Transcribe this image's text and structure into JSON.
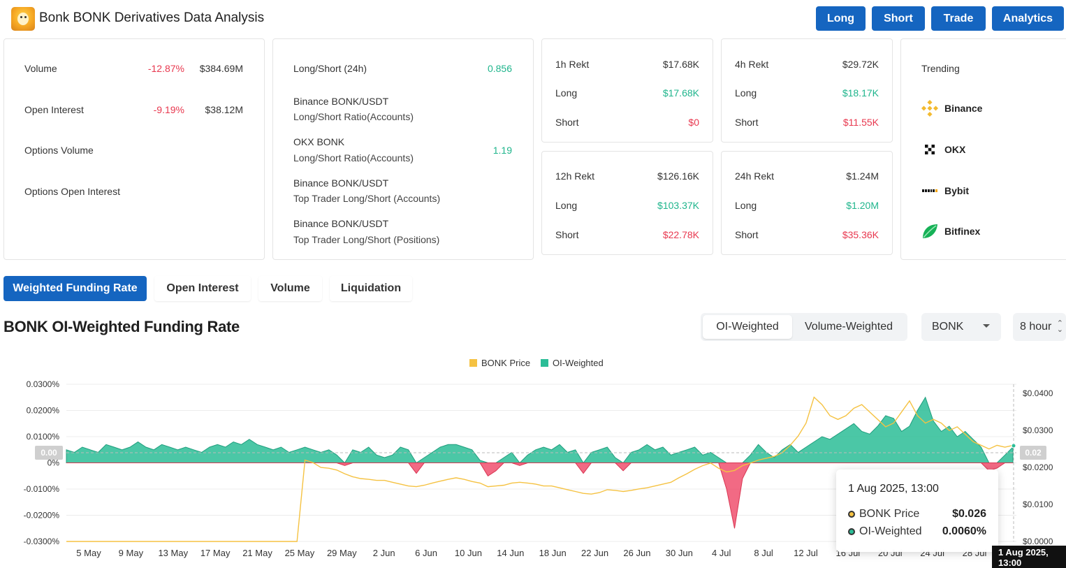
{
  "header": {
    "title": "Bonk BONK Derivatives Data Analysis",
    "nav": [
      "Long",
      "Short",
      "Trade",
      "Analytics"
    ]
  },
  "market": {
    "volume_label": "Volume",
    "volume_change": "-12.87%",
    "volume_value": "$384.69M",
    "oi_label": "Open Interest",
    "oi_change": "-9.19%",
    "oi_value": "$38.12M",
    "options_volume_label": "Options Volume",
    "options_oi_label": "Options Open Interest"
  },
  "ratios": {
    "ls24_label": "Long/Short (24h)",
    "ls24_value": "0.856",
    "binance_title": "Binance BONK/USDT",
    "binance_sub": "Long/Short Ratio(Accounts)",
    "okx_title": "OKX BONK",
    "okx_sub": "Long/Short Ratio(Accounts)",
    "okx_value": "1.19",
    "top_acc_title": "Binance BONK/USDT",
    "top_acc_sub": "Top Trader Long/Short (Accounts)",
    "top_pos_title": "Binance BONK/USDT",
    "top_pos_sub": "Top Trader Long/Short (Positions)"
  },
  "rekt": [
    {
      "label": "1h Rekt",
      "total": "$17.68K",
      "long_label": "Long",
      "long": "$17.68K",
      "short_label": "Short",
      "short": "$0"
    },
    {
      "label": "4h Rekt",
      "total": "$29.72K",
      "long_label": "Long",
      "long": "$18.17K",
      "short_label": "Short",
      "short": "$11.55K"
    },
    {
      "label": "12h Rekt",
      "total": "$126.16K",
      "long_label": "Long",
      "long": "$103.37K",
      "short_label": "Short",
      "short": "$22.78K"
    },
    {
      "label": "24h Rekt",
      "total": "$1.24M",
      "long_label": "Long",
      "long": "$1.20M",
      "short_label": "Short",
      "short": "$35.36K"
    }
  ],
  "trending": {
    "title": "Trending",
    "exchanges": [
      {
        "name": "Binance",
        "icon": "binance-icon"
      },
      {
        "name": "OKX",
        "icon": "okx-icon"
      },
      {
        "name": "Bybit",
        "icon": "bybit-icon"
      },
      {
        "name": "Bitfinex",
        "icon": "bitfinex-icon"
      }
    ]
  },
  "tabs": [
    "Weighted Funding Rate",
    "Open Interest",
    "Volume",
    "Liquidation"
  ],
  "section_title": "BONK OI-Weighted Funding Rate",
  "weighting": [
    "OI-Weighted",
    "Volume-Weighted"
  ],
  "symbol_select": "BONK",
  "interval_select": "8 hour",
  "colors": {
    "accent": "#1565c0",
    "oi": "#2bbd97",
    "negative": "#f0506e",
    "price": "#f5c242"
  },
  "chart_data": {
    "type": "area",
    "legend": [
      "BONK Price",
      "OI-Weighted"
    ],
    "x_labels": [
      "5 May",
      "9 May",
      "13 May",
      "17 May",
      "21 May",
      "25 May",
      "29 May",
      "2 Jun",
      "6 Jun",
      "10 Jun",
      "14 Jun",
      "18 Jun",
      "22 Jun",
      "26 Jun",
      "30 Jun",
      "4 Jul",
      "8 Jul",
      "12 Jul",
      "16 Jul",
      "20 Jul",
      "24 Jul",
      "28 Jul"
    ],
    "y_left_ticks": [
      "0.0300%",
      "0.0200%",
      "0.0100%",
      "0%",
      "-0.0100%",
      "-0.0200%",
      "-0.0300%"
    ],
    "y_right_ticks": [
      "$0.0400",
      "$0.0300",
      "$0.0200",
      "$0.0100",
      "$0.0000"
    ],
    "y_left_range": [
      -0.03,
      0.03
    ],
    "y_right_range": [
      0.0,
      0.0425
    ],
    "cursor_left_label": "0.00",
    "cursor_right_label": "0.02",
    "series": [
      {
        "name": "OI-Weighted",
        "unit": "%",
        "values": [
          0.005,
          0.004,
          0.006,
          0.005,
          0.004,
          0.007,
          0.006,
          0.005,
          0.006,
          0.008,
          0.006,
          0.005,
          0.007,
          0.006,
          0.005,
          0.006,
          0.005,
          0.004,
          0.006,
          0.007,
          0.006,
          0.008,
          0.007,
          0.009,
          0.007,
          0.006,
          0.005,
          0.006,
          0.004,
          0.005,
          0.006,
          0.005,
          0.004,
          0.005,
          0.003,
          -0.001,
          0.005,
          0.004,
          0.006,
          0.003,
          0.002,
          0.003,
          0.006,
          0.005,
          -0.004,
          0.002,
          0.004,
          0.006,
          0.007,
          0.007,
          0.006,
          0.005,
          0.001,
          -0.005,
          -0.003,
          0.002,
          0.004,
          -0.001,
          0.003,
          0.005,
          0.006,
          0.005,
          0.007,
          0.004,
          0.005,
          -0.004,
          0.004,
          0.005,
          0.006,
          0.002,
          -0.003,
          0.004,
          0.005,
          0.007,
          0.005,
          0.006,
          0.003,
          0.004,
          0.005,
          0.006,
          0.003,
          0.004,
          0.002,
          -0.01,
          -0.025,
          -0.006,
          0.003,
          0.007,
          0.004,
          0.002,
          0.005,
          0.007,
          0.004,
          0.006,
          0.008,
          0.01,
          0.009,
          0.011,
          0.013,
          0.015,
          0.012,
          0.011,
          0.014,
          0.018,
          0.017,
          0.012,
          0.014,
          0.02,
          0.025,
          0.016,
          0.012,
          0.014,
          0.01,
          0.012,
          0.009,
          0.006,
          -0.003,
          -0.002,
          0.003,
          0.006
        ]
      },
      {
        "name": "BONK Price",
        "unit": "$",
        "values": [
          0.0,
          0.0,
          0.0,
          0.0,
          0.0,
          0.0,
          0.0,
          0.0,
          0.0,
          0.0,
          0.0,
          0.0,
          0.0,
          0.0,
          0.0,
          0.0,
          0.0,
          0.0,
          0.0,
          0.0,
          0.0,
          0.0,
          0.0,
          0.0,
          0.0,
          0.0,
          0.0,
          0.0,
          0.0,
          0.0,
          0.022,
          0.0213,
          0.02,
          0.0198,
          0.0193,
          0.0183,
          0.0175,
          0.017,
          0.0168,
          0.0165,
          0.0165,
          0.016,
          0.0155,
          0.015,
          0.0148,
          0.0152,
          0.0158,
          0.0163,
          0.0168,
          0.0172,
          0.0168,
          0.0162,
          0.0158,
          0.0148,
          0.015,
          0.0152,
          0.0158,
          0.016,
          0.0158,
          0.0155,
          0.015,
          0.015,
          0.0145,
          0.014,
          0.0135,
          0.013,
          0.0128,
          0.0132,
          0.014,
          0.0138,
          0.0135,
          0.0138,
          0.0142,
          0.0145,
          0.015,
          0.0155,
          0.016,
          0.0172,
          0.0183,
          0.0195,
          0.0205,
          0.0212,
          0.0198,
          0.0188,
          0.0192,
          0.0205,
          0.0212,
          0.022,
          0.0225,
          0.023,
          0.024,
          0.026,
          0.0285,
          0.032,
          0.039,
          0.037,
          0.034,
          0.033,
          0.034,
          0.036,
          0.037,
          0.035,
          0.033,
          0.031,
          0.032,
          0.035,
          0.038,
          0.034,
          0.032,
          0.033,
          0.032,
          0.03,
          0.031,
          0.029,
          0.027,
          0.026,
          0.025,
          0.026,
          0.0255,
          0.026
        ]
      }
    ],
    "tooltip": {
      "date": "1 Aug 2025, 13:00",
      "price_label": "BONK Price",
      "price_value": "$0.026",
      "oi_label": "OI-Weighted",
      "oi_value": "0.0060%"
    },
    "x_badge": "1 Aug 2025, 13:00"
  }
}
